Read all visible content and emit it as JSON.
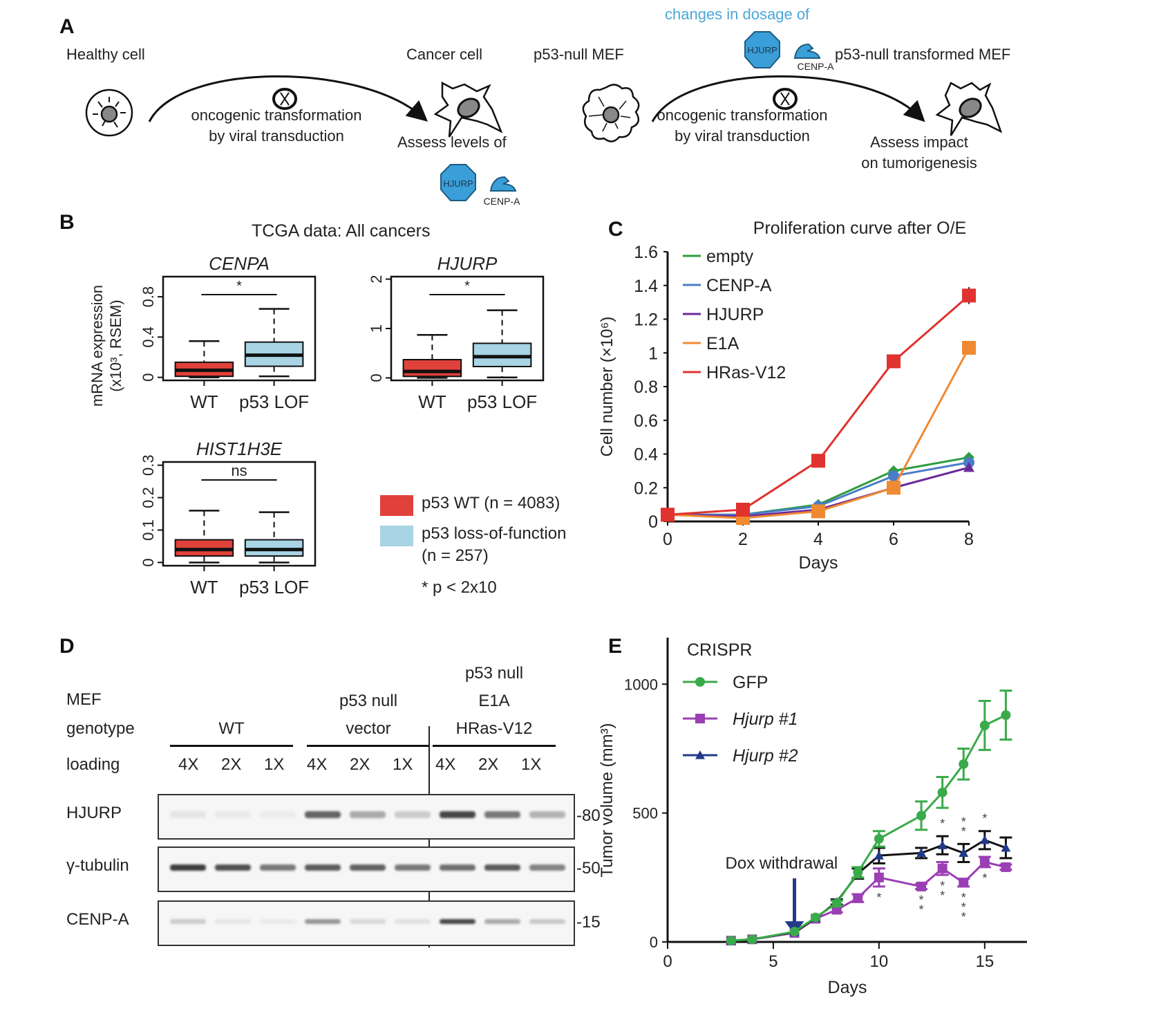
{
  "panels": {
    "A": {
      "letter": "A",
      "healthy_cell": "Healthy cell",
      "cancer_cell": "Cancer cell",
      "transformation_line1": "oncogenic transformation",
      "transformation_line2": "by viral transduction",
      "assess_levels": "Assess levels of",
      "hjurp_label": "HJURP",
      "cenpa_label": "CENP-A",
      "p53_null_mef": "p53-null MEF",
      "changes_dosage": "changes in dosage of",
      "p53_null_transformed": "p53-null transformed MEF",
      "assess_impact_line1": "Assess impact",
      "assess_impact_line2": "on tumorigenesis",
      "colors": {
        "protein_blue": "#3a9fd8",
        "dosage_text": "#4aa8d8"
      }
    },
    "B": {
      "letter": "B",
      "title": "TCGA data: All cancers",
      "ylabel_line1": "mRNA expression",
      "ylabel_line2": "(x10³, RSEM)",
      "legend": [
        {
          "label": "p53 WT (n = 4083)",
          "color": "#e0413a"
        },
        {
          "label_line1": "p53 loss-of-function",
          "label_line2": "(n = 257)",
          "color": "#a8d4e4"
        }
      ],
      "footnote": "* p < 2x10"
    },
    "C": {
      "letter": "C"
    },
    "D": {
      "letter": "D",
      "row_labels": {
        "mef": "MEF",
        "genotype": "genotype",
        "loading": "loading"
      },
      "groups": [
        {
          "label_lines": [
            "WT"
          ],
          "lanes": [
            "4X",
            "2X",
            "1X"
          ]
        },
        {
          "label_lines": [
            "p53 null",
            "vector"
          ],
          "lanes": [
            "4X",
            "2X",
            "1X"
          ]
        },
        {
          "label_lines": [
            "p53 null",
            "E1A",
            "HRas-V12"
          ],
          "lanes": [
            "4X",
            "2X",
            "1X"
          ]
        }
      ],
      "blots": [
        {
          "name": "HJURP",
          "marker": "-80",
          "intensities": [
            0.06,
            0.03,
            0.02,
            0.7,
            0.35,
            0.18,
            0.85,
            0.6,
            0.3
          ]
        },
        {
          "name": "γ-tubulin",
          "marker": "-50",
          "intensities": [
            0.9,
            0.8,
            0.6,
            0.75,
            0.72,
            0.6,
            0.65,
            0.75,
            0.55
          ]
        },
        {
          "name": "CENP-A",
          "marker": "-15",
          "intensities": [
            0.18,
            0.05,
            0.03,
            0.45,
            0.12,
            0.08,
            0.85,
            0.35,
            0.2
          ]
        }
      ]
    },
    "E": {
      "letter": "E"
    }
  },
  "chart_data": [
    {
      "id": "B-CENPA",
      "type": "box",
      "title": "CENPA",
      "categories": [
        "WT",
        "p53 LOF"
      ],
      "yticks": [
        0,
        0.4,
        0.8
      ],
      "ylim": [
        -0.03,
        1.0
      ],
      "significance": "*",
      "boxes": [
        {
          "group": "WT",
          "min": 0,
          "q1": 0.01,
          "median": 0.07,
          "q3": 0.15,
          "max": 0.36,
          "color": "#e0413a"
        },
        {
          "group": "p53 LOF",
          "min": 0.01,
          "q1": 0.11,
          "median": 0.22,
          "q3": 0.35,
          "max": 0.68,
          "color": "#a8d4e4"
        }
      ]
    },
    {
      "id": "B-HJURP",
      "type": "box",
      "title": "HJURP",
      "categories": [
        "WT",
        "p53 LOF"
      ],
      "yticks": [
        0,
        1,
        2
      ],
      "ylim": [
        -0.05,
        2.05
      ],
      "significance": "*",
      "boxes": [
        {
          "group": "WT",
          "min": 0,
          "q1": 0.03,
          "median": 0.13,
          "q3": 0.37,
          "max": 0.87,
          "color": "#e0413a"
        },
        {
          "group": "p53 LOF",
          "min": 0.01,
          "q1": 0.23,
          "median": 0.43,
          "q3": 0.7,
          "max": 1.37,
          "color": "#a8d4e4"
        }
      ]
    },
    {
      "id": "B-HIST1H3E",
      "type": "box",
      "title": "HIST1H3E",
      "categories": [
        "WT",
        "p53 LOF"
      ],
      "yticks": [
        0,
        0.1,
        0.2,
        0.3
      ],
      "ylim": [
        -0.01,
        0.31
      ],
      "significance": "ns",
      "boxes": [
        {
          "group": "WT",
          "min": 0,
          "q1": 0.02,
          "median": 0.04,
          "q3": 0.07,
          "max": 0.16,
          "color": "#e0413a"
        },
        {
          "group": "p53 LOF",
          "min": 0,
          "q1": 0.02,
          "median": 0.04,
          "q3": 0.07,
          "max": 0.155,
          "color": "#a8d4e4"
        }
      ]
    },
    {
      "id": "C",
      "type": "line",
      "title": "Proliferation curve after O/E",
      "xlabel": "Days",
      "ylabel": "Cell number (×10⁶)",
      "x": [
        0,
        2,
        4,
        6,
        8
      ],
      "xticks": [
        0,
        2,
        4,
        6,
        8
      ],
      "yticks": [
        0,
        0.2,
        0.4,
        0.6,
        0.8,
        1,
        1.2,
        1.4,
        1.6
      ],
      "ytick_labels": [
        "0",
        "0.2",
        "0.4",
        "0.6",
        "0.8",
        "1",
        "1.2",
        "1.4",
        "1.6"
      ],
      "xlim": [
        0,
        8
      ],
      "ylim": [
        0,
        1.6
      ],
      "legend_position": "top-left",
      "series": [
        {
          "name": "empty",
          "color": "#2e9c3f",
          "marker": "diamond",
          "values": [
            0.04,
            0.04,
            0.1,
            0.3,
            0.38
          ]
        },
        {
          "name": "CENP-A",
          "color": "#4a7cc8",
          "marker": "circle",
          "values": [
            0.04,
            0.04,
            0.09,
            0.27,
            0.35
          ]
        },
        {
          "name": "HJURP",
          "color": "#6a2a9a",
          "marker": "triangle",
          "values": [
            0.04,
            0.03,
            0.07,
            0.2,
            0.32
          ]
        },
        {
          "name": "E1A",
          "color": "#ef8a32",
          "marker": "square",
          "values": [
            0.04,
            0.02,
            0.06,
            0.2,
            1.03
          ]
        },
        {
          "name": "HRas-V12",
          "color": "#e0322f",
          "marker": "square",
          "values": [
            0.04,
            0.07,
            0.36,
            0.95,
            1.34
          ],
          "errors": [
            0,
            0,
            0,
            0,
            0.05
          ]
        }
      ]
    },
    {
      "id": "E",
      "type": "line",
      "legend_title": "CRISPR",
      "xlabel": "Days",
      "ylabel": "Tumor volume (mm³)",
      "xticks": [
        0,
        5,
        10,
        15
      ],
      "yticks": [
        0,
        500,
        1000
      ],
      "xlim": [
        0,
        17
      ],
      "ylim": [
        0,
        1100
      ],
      "legend_position": "top-left",
      "annotation": {
        "text": "Dox withdrawal",
        "x": 6
      },
      "series": [
        {
          "name": "GFP",
          "italic": false,
          "color": "#3aaa4a",
          "marker": "circle",
          "x": [
            3,
            4,
            6,
            7,
            8,
            9,
            10,
            12,
            13,
            14,
            15,
            16
          ],
          "values": [
            5,
            10,
            40,
            95,
            150,
            270,
            400,
            490,
            580,
            690,
            840,
            880
          ],
          "errors": [
            0,
            0,
            0,
            0,
            10,
            20,
            30,
            55,
            60,
            60,
            95,
            95
          ]
        },
        {
          "name": "Hjurp #1",
          "italic": true,
          "color": "#9b3fb5",
          "marker": "square",
          "x": [
            3,
            4,
            6,
            7,
            8,
            9,
            10,
            12,
            13,
            14,
            15,
            16
          ],
          "values": [
            5,
            10,
            35,
            90,
            125,
            170,
            250,
            215,
            285,
            230,
            310,
            290
          ],
          "errors": [
            0,
            0,
            0,
            0,
            10,
            15,
            35,
            10,
            25,
            15,
            20,
            10
          ],
          "significance": [
            "",
            "",
            "",
            "",
            "",
            "",
            "*",
            "**",
            "**",
            "***",
            "*",
            ""
          ]
        },
        {
          "name": "Hjurp #2",
          "italic": true,
          "color": "#233a8a",
          "marker": "triangle",
          "x": [
            3,
            4,
            6,
            7,
            8,
            9,
            10,
            12,
            13,
            14,
            15,
            16
          ],
          "values": [
            5,
            10,
            38,
            92,
            155,
            265,
            335,
            345,
            375,
            345,
            395,
            365
          ],
          "errors": [
            0,
            0,
            0,
            0,
            10,
            20,
            30,
            20,
            35,
            35,
            35,
            40
          ],
          "significance": [
            "",
            "",
            "",
            "",
            "",
            "",
            "",
            "",
            "*",
            "**",
            "*",
            ""
          ]
        }
      ]
    }
  ]
}
